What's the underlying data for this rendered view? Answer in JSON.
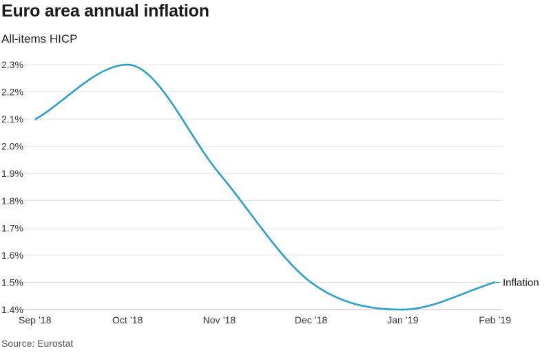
{
  "header": {
    "title": "Euro area annual inflation",
    "subtitle": "All-items HICP"
  },
  "footer": {
    "source": "Source: Eurostat"
  },
  "chart_data": {
    "type": "line",
    "title": "Euro area annual inflation",
    "subtitle": "All-items HICP",
    "xlabel": "",
    "ylabel": "",
    "x": [
      "Sep ’18",
      "Oct ’18",
      "Nov ’18",
      "Dec ’18",
      "Jan ’19",
      "Feb ’19"
    ],
    "series": [
      {
        "name": "Inflation",
        "values": [
          2.1,
          2.3,
          1.9,
          1.5,
          1.4,
          1.5
        ]
      }
    ],
    "ylim": [
      1.4,
      2.3
    ],
    "yticks": [
      1.4,
      1.5,
      1.6,
      1.7,
      1.8,
      1.9,
      2.0,
      2.1,
      2.2,
      2.3
    ],
    "ytick_labels": [
      "1.4%",
      "1.5%",
      "1.6%",
      "1.7%",
      "1.8%",
      "1.9%",
      "2.0%",
      "2.1%",
      "2.2%",
      "2.3%"
    ],
    "grid": true,
    "legend": "end-of-line label",
    "color": "#2a9fd0"
  }
}
